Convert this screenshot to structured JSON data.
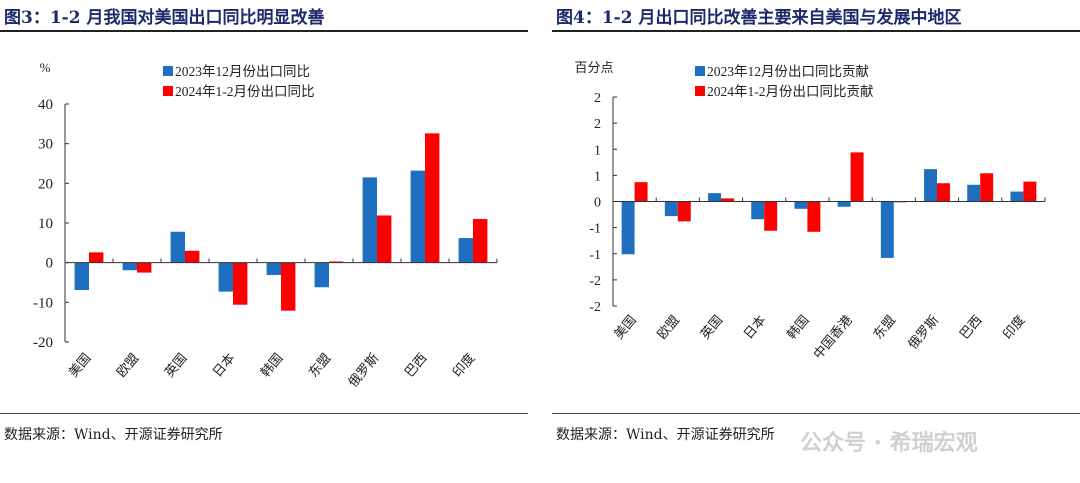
{
  "colors": {
    "series1": "#1f6fc0",
    "series2": "#ff0000",
    "title": "#1b2a6b"
  },
  "watermark": "公众号 · 希瑞宏观",
  "chart_data": [
    {
      "type": "bar",
      "title": "图3：1-2 月我国对美国出口同比明显改善",
      "ylabel": "%",
      "source": "数据来源：Wind、开源证券研究所",
      "categories": [
        "美国",
        "欧盟",
        "英国",
        "日本",
        "韩国",
        "东盟",
        "俄罗斯",
        "巴西",
        "印度"
      ],
      "ylim": [
        -20,
        40
      ],
      "yticks": [
        40,
        30,
        20,
        10,
        0,
        -10,
        -20
      ],
      "ytick_labels": [
        "40",
        "30",
        "20",
        "10",
        "0",
        "-10",
        "-20"
      ],
      "legend_placement": "top-center",
      "series": [
        {
          "name": "2023年12月份出口同比",
          "values": [
            -6.9,
            -1.9,
            7.8,
            -7.3,
            -3.1,
            -6.2,
            21.5,
            23.2,
            6.2
          ]
        },
        {
          "name": "2024年1-2月份出口同比",
          "values": [
            2.6,
            -2.5,
            3.0,
            -10.6,
            -12.1,
            0.3,
            11.9,
            32.6,
            11.0
          ]
        }
      ]
    },
    {
      "type": "bar",
      "title": "图4：1-2 月出口同比改善主要来自美国与发展中地区",
      "ylabel": "百分点",
      "source": "数据来源：Wind、开源证券研究所",
      "categories": [
        "美国",
        "欧盟",
        "英国",
        "日本",
        "韩国",
        "中国香港",
        "东盟",
        "俄罗斯",
        "巴西",
        "印度"
      ],
      "ylim": [
        -2,
        2
      ],
      "yticks": [
        2,
        1.5,
        1,
        0.5,
        0,
        -0.5,
        -1,
        -1.5,
        -2
      ],
      "ytick_labels": [
        "2",
        "2",
        "1",
        "1",
        "0",
        "-1",
        "-1",
        "-2",
        "-2"
      ],
      "legend_placement": "top-center",
      "series": [
        {
          "name": "2023年12月份出口同比贡献",
          "values": [
            -1.01,
            -0.28,
            0.16,
            -0.34,
            -0.14,
            -0.1,
            -1.08,
            0.62,
            0.32,
            0.19
          ]
        },
        {
          "name": "2024年1-2月份出口同比贡献",
          "values": [
            0.37,
            -0.38,
            0.06,
            -0.56,
            -0.58,
            0.94,
            0,
            0.35,
            0.54,
            0.38
          ]
        }
      ]
    }
  ]
}
